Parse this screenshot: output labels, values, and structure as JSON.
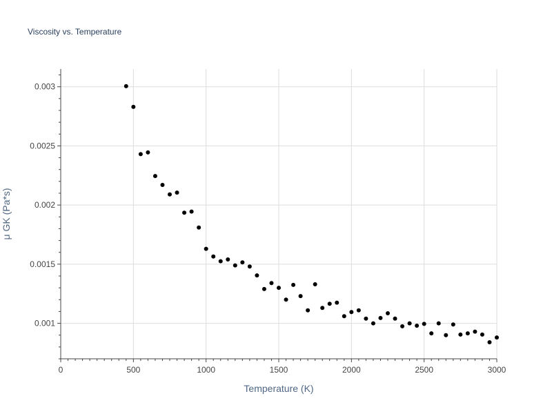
{
  "chart_data": {
    "type": "scatter",
    "title": "Viscosity vs. Temperature",
    "xlabel": "Temperature (K)",
    "ylabel": "μ GK (Pa*s)",
    "xlim": [
      0,
      3000
    ],
    "ylim": [
      0.0007,
      0.00315
    ],
    "xticks": [
      0,
      500,
      1000,
      1500,
      2000,
      2500,
      3000
    ],
    "xtick_labels": [
      "0",
      "500",
      "1000",
      "1500",
      "2000",
      "2500",
      "3000"
    ],
    "yticks": [
      0.001,
      0.0015,
      0.002,
      0.0025,
      0.003
    ],
    "ytick_labels": [
      "0.001",
      "0.0015",
      "0.002",
      "0.0025",
      "0.003"
    ],
    "grid": true,
    "marker_color": "#000000",
    "series": [
      {
        "name": "μ GK",
        "x": [
          450,
          500,
          550,
          600,
          650,
          700,
          750,
          800,
          850,
          900,
          950,
          1000,
          1050,
          1100,
          1150,
          1200,
          1250,
          1300,
          1350,
          1400,
          1450,
          1500,
          1550,
          1600,
          1650,
          1700,
          1750,
          1800,
          1850,
          1900,
          1950,
          2000,
          2050,
          2100,
          2150,
          2200,
          2250,
          2300,
          2350,
          2400,
          2450,
          2500,
          2550,
          2600,
          2650,
          2700,
          2750,
          2800,
          2850,
          2900,
          2950,
          3000
        ],
        "y": [
          0.003005,
          0.00283,
          0.00243,
          0.002445,
          0.002245,
          0.00217,
          0.00209,
          0.002105,
          0.001935,
          0.001945,
          0.00181,
          0.00163,
          0.001565,
          0.001525,
          0.00154,
          0.00149,
          0.001515,
          0.00148,
          0.001405,
          0.00129,
          0.00134,
          0.0013,
          0.0012,
          0.001325,
          0.00123,
          0.00111,
          0.00133,
          0.00113,
          0.001165,
          0.001175,
          0.00106,
          0.001095,
          0.00111,
          0.00104,
          0.001,
          0.001045,
          0.001085,
          0.00104,
          0.000975,
          0.001,
          0.00098,
          0.000995,
          0.000915,
          0.001,
          0.0009,
          0.00099,
          0.000905,
          0.000915,
          0.00093,
          0.000905,
          0.00084,
          0.00088
        ]
      }
    ]
  }
}
